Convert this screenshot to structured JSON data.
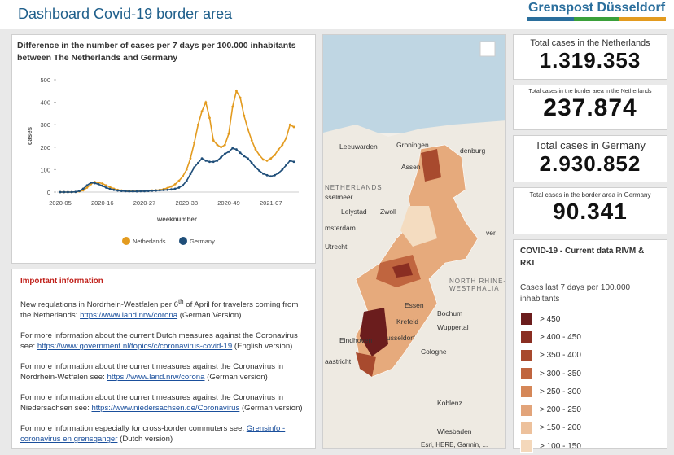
{
  "header": {
    "title": "Dashboard Covid-19 border area",
    "logo": "Grenspost Düsseldorf"
  },
  "chart_data": {
    "type": "line",
    "title": "Difference in the number of cases per 7 days per 100.000 inhabitants between The Netherlands and Germany",
    "x_label": "weeknumber",
    "y_label": "cases",
    "categories": [
      "2020-05",
      null,
      null,
      null,
      null,
      null,
      null,
      null,
      null,
      null,
      null,
      "2020-16",
      null,
      null,
      null,
      null,
      null,
      null,
      null,
      null,
      null,
      null,
      "2020-27",
      null,
      null,
      null,
      null,
      null,
      null,
      null,
      null,
      null,
      null,
      "2020-38",
      null,
      null,
      null,
      null,
      null,
      null,
      null,
      null,
      null,
      null,
      "2020-49",
      null,
      null,
      null,
      null,
      null,
      null,
      null,
      null,
      null,
      null,
      "2021-07",
      null,
      null,
      null,
      null,
      null,
      null
    ],
    "series": [
      {
        "name": "Netherlands",
        "color": "#e39b1f",
        "values": [
          0,
          0,
          0,
          0,
          1,
          3,
          8,
          20,
          35,
          45,
          42,
          38,
          30,
          22,
          15,
          10,
          7,
          5,
          4,
          4,
          4,
          5,
          5,
          6,
          7,
          8,
          10,
          13,
          18,
          25,
          35,
          50,
          70,
          100,
          150,
          220,
          300,
          360,
          400,
          330,
          230,
          210,
          200,
          210,
          260,
          380,
          450,
          420,
          340,
          280,
          230,
          190,
          165,
          145,
          140,
          150,
          165,
          190,
          210,
          240,
          300,
          290
        ]
      },
      {
        "name": "Germany",
        "color": "#1f4e79",
        "values": [
          0,
          0,
          0,
          0,
          1,
          5,
          15,
          30,
          42,
          40,
          35,
          28,
          20,
          14,
          10,
          7,
          5,
          4,
          3,
          3,
          3,
          4,
          4,
          5,
          6,
          7,
          8,
          9,
          10,
          12,
          15,
          20,
          30,
          50,
          80,
          110,
          130,
          150,
          140,
          135,
          135,
          140,
          155,
          170,
          180,
          195,
          190,
          175,
          160,
          150,
          130,
          110,
          95,
          82,
          75,
          70,
          75,
          85,
          100,
          120,
          140,
          135
        ]
      }
    ],
    "ylim": [
      0,
      500
    ],
    "yticks": [
      0,
      100,
      200,
      300,
      400,
      500
    ],
    "grid": false,
    "legend": "bottom"
  },
  "info": {
    "heading": "Important information",
    "paragraphs": [
      {
        "text": "New regulations in Nordrhein-Westfalen per 6",
        "sup": "th",
        "text2": " of April for travelers coming from the Netherlands: ",
        "link": "https://www.land.nrw/corona",
        "after": " (German Version)."
      },
      {
        "text": "For more information about the current Dutch measures against the Coronavirus see: ",
        "link": "https://www.government.nl/topics/c/coronavirus-covid-19",
        "after": " (English version)"
      },
      {
        "text": "For more information about the current measures against the Coronavirus in Nordrhein-Wetfalen see: ",
        "link": "https://www.land.nrw/corona",
        "after": " (German version)"
      },
      {
        "text": "For more information about the current measures against the Coronavirus in Niedersachsen see: ",
        "link": "https://www.niedersachsen.de/Coronavirus",
        "after": " (German version)"
      },
      {
        "text": "For more information especially for cross-border commuters see: ",
        "link": "Grensinfo - coronavirus en grensganger",
        "after": " (Dutch version)"
      }
    ]
  },
  "map": {
    "labels": [
      "Leeuwarden",
      "Groningen",
      "Assen",
      "NETHERLANDS",
      "sselmeer",
      "Lelystad",
      "Zwoll",
      "msterdam",
      "Utrecht",
      "NORTH RHINE-",
      "WESTPHALIA",
      "Essen",
      "Bochum",
      "Krefeld",
      "Wuppertal",
      "Eindhoven",
      "usseldorf",
      "Cologne",
      "aastricht",
      "Koblenz",
      "Wiesbaden",
      "denburg",
      "ver"
    ],
    "attribution": "Esri, HERE, Garmin, ..."
  },
  "kpis": [
    {
      "label": "Total cases in the Netherlands",
      "value": "1.319.353"
    },
    {
      "label": "Total cases in the border area in the Netherlands",
      "value": "237.874"
    },
    {
      "label": "Total cases in Germany",
      "value": "2.930.852"
    },
    {
      "label": "Total cases in the border area in Germany",
      "value": "90.341"
    }
  ],
  "legend": {
    "title": "COVID-19 - Current data RIVM & RKI",
    "subtitle": "Cases last 7 days per 100.000 inhabitants",
    "items": [
      {
        "label": "> 450",
        "color": "#6b1d1d"
      },
      {
        "label": "> 400 - 450",
        "color": "#8a2e22"
      },
      {
        "label": "> 350 - 400",
        "color": "#a84a2e"
      },
      {
        "label": "> 300 - 350",
        "color": "#c0653f"
      },
      {
        "label": "> 250 - 300",
        "color": "#d58758"
      },
      {
        "label": "> 200 - 250",
        "color": "#e2a47a"
      },
      {
        "label": "> 150 - 200",
        "color": "#edc19c"
      },
      {
        "label": "> 100 - 150",
        "color": "#f4d8bb"
      }
    ]
  }
}
